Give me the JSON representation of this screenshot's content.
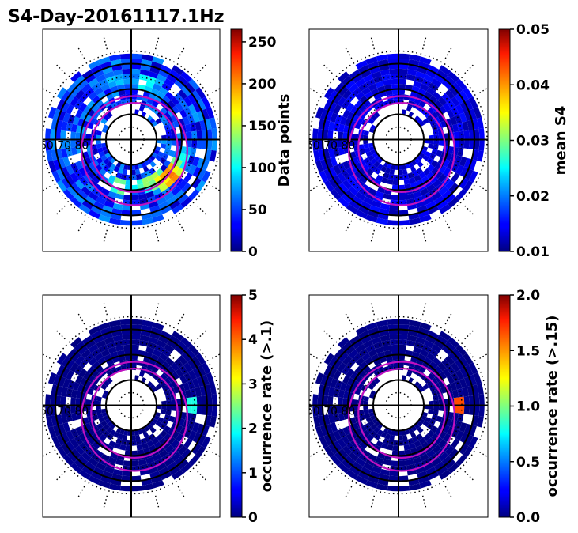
{
  "chart_data": {
    "type": "heatmap",
    "title": "S4-Day-20161117.1Hz",
    "projection": "polar magnetic-latitude / local-time dial",
    "ring_label": "60 70 80",
    "panels": [
      {
        "id": "data-points",
        "colorbar_label": "Data points",
        "clim": [
          0,
          265
        ],
        "ticks": [
          "0",
          "50",
          "100",
          "150",
          "200",
          "250"
        ],
        "tick_values": [
          0,
          50,
          100,
          150,
          200,
          250
        ],
        "description_values": "counts per bin, mostly 10-90, peaks up to about 250 on the dusk-midnight side",
        "hot_bins": [
          {
            "mlt": 20.5,
            "mlat": 70,
            "value": 210
          },
          {
            "mlt": 21.0,
            "mlat": 69,
            "value": 230
          },
          {
            "mlt": 22.0,
            "mlat": 71,
            "value": 170
          },
          {
            "mlt": 23.0,
            "mlat": 72,
            "value": 150
          },
          {
            "mlt": 1.0,
            "mlat": 71,
            "value": 140
          },
          {
            "mlt": 19.5,
            "mlat": 68,
            "value": 120
          },
          {
            "mlt": 13.0,
            "mlat": 67,
            "value": 110
          },
          {
            "mlt": 11.0,
            "mlat": 66,
            "value": 100
          }
        ]
      },
      {
        "id": "mean-s4",
        "colorbar_label": "mean S4",
        "clim": [
          0.01,
          0.05
        ],
        "ticks": [
          "0.01",
          "0.02",
          "0.03",
          "0.04",
          "0.05"
        ],
        "tick_values": [
          0.01,
          0.02,
          0.03,
          0.04,
          0.05
        ],
        "description_values": "nearly uniform about 0.012-0.015 in every bin"
      },
      {
        "id": "occurrence-01",
        "colorbar_label": "occurrence rate (>.1)",
        "clim": [
          0,
          5
        ],
        "ticks": [
          "0",
          "1",
          "2",
          "3",
          "4",
          "5"
        ],
        "tick_values": [
          0,
          1,
          2,
          3,
          4,
          5
        ],
        "description_values": "about 0 everywhere; isolated bin near 2 at 18 MLT",
        "hot_bins": [
          {
            "mlt": 18.0,
            "mlat": 66,
            "value": 2.0
          }
        ]
      },
      {
        "id": "occurrence-015",
        "colorbar_label": "occurrence rate (>.15)",
        "clim": [
          0,
          2
        ],
        "ticks": [
          "0.0",
          "0.5",
          "1.0",
          "1.5",
          "2.0"
        ],
        "tick_values": [
          0,
          0.5,
          1.0,
          1.5,
          2.0
        ],
        "description_values": "about 0 everywhere; isolated bin near 1.6 at 18 MLT",
        "hot_bins": [
          {
            "mlt": 18.0,
            "mlat": 66,
            "value": 1.6
          }
        ]
      }
    ],
    "rings_mlat": [
      80,
      70,
      60
    ],
    "dotted_rings_mlat": [
      85,
      75,
      65,
      55
    ],
    "auroral_oval": "two magenta ovals offset toward midnight"
  }
}
